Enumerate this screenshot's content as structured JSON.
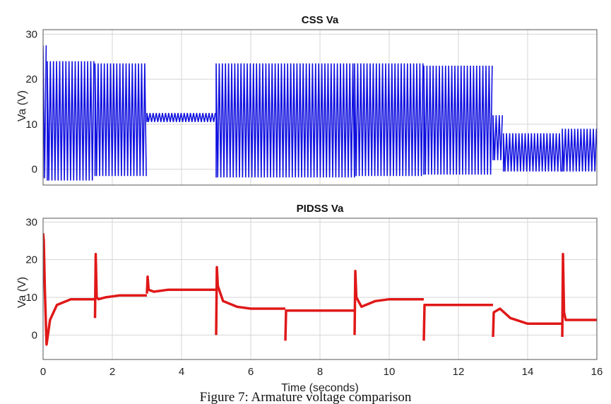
{
  "figure_caption": "Figure 7: Armature voltage comparison",
  "chart_data": [
    {
      "type": "line",
      "title": "CSS Va",
      "xlabel": "",
      "ylabel": "Va (V)",
      "xlim": [
        0,
        16
      ],
      "ylim": [
        -3.5,
        31
      ],
      "xticks": [
        "0",
        "2",
        "4",
        "6",
        "8",
        "10",
        "12",
        "14",
        "16"
      ],
      "yticks": [
        "0",
        "10",
        "20",
        "30"
      ],
      "grid": true,
      "color": "#1010e0",
      "oscillating": true,
      "segments": [
        {
          "x": [
            0.0,
            0.12
          ],
          "band": [
            -2.0,
            27.5
          ]
        },
        {
          "x": [
            0.12,
            1.5
          ],
          "band": [
            -2.5,
            24.0
          ]
        },
        {
          "x": [
            1.5,
            3.0
          ],
          "band": [
            -1.5,
            23.5
          ]
        },
        {
          "x": [
            3.0,
            5.0
          ],
          "band": [
            10.5,
            12.5
          ]
        },
        {
          "x": [
            5.0,
            9.0
          ],
          "band": [
            -1.8,
            23.5
          ]
        },
        {
          "x": [
            9.0,
            11.0
          ],
          "band": [
            -1.5,
            23.5
          ]
        },
        {
          "x": [
            11.0,
            13.0
          ],
          "band": [
            -1.2,
            23.0
          ]
        },
        {
          "x": [
            13.0,
            13.3
          ],
          "band": [
            2.0,
            12.0
          ]
        },
        {
          "x": [
            13.3,
            15.0
          ],
          "band": [
            -0.5,
            8.0
          ]
        },
        {
          "x": [
            15.0,
            16.0
          ],
          "band": [
            -0.5,
            9.0
          ]
        }
      ]
    },
    {
      "type": "line",
      "title": "PIDSS Va",
      "xlabel": "Time (seconds)",
      "ylabel": "Va (V)",
      "xlim": [
        0,
        16
      ],
      "ylim": [
        -6.5,
        31
      ],
      "xticks": [
        "0",
        "2",
        "4",
        "6",
        "8",
        "10",
        "12",
        "14",
        "16"
      ],
      "yticks": [
        "0",
        "10",
        "20",
        "30"
      ],
      "grid": true,
      "color": "#e01818",
      "series": [
        {
          "x": [
            0,
            0.02,
            0.05,
            0.1,
            0.2,
            0.4,
            0.8,
            1.5
          ],
          "y": [
            27,
            25,
            12,
            -2.5,
            4,
            8,
            9.5,
            9.5
          ]
        },
        {
          "x": [
            1.5,
            1.52,
            1.55,
            1.6,
            1.8,
            2.2,
            3.0
          ],
          "y": [
            4.5,
            21.5,
            10,
            9.5,
            10,
            10.5,
            10.5
          ]
        },
        {
          "x": [
            3.0,
            3.02,
            3.05,
            3.2,
            3.6,
            4.0,
            5.0
          ],
          "y": [
            11,
            15.5,
            12,
            11.5,
            12,
            12,
            12
          ]
        },
        {
          "x": [
            5.0,
            5.02,
            5.05,
            5.2,
            5.6,
            6.0,
            7.0
          ],
          "y": [
            0,
            18,
            13,
            9,
            7.5,
            7,
            7
          ]
        },
        {
          "x": [
            7.0,
            7.02,
            7.1,
            8.0,
            9.0
          ],
          "y": [
            -1.5,
            6.5,
            6.5,
            6.5,
            6.5
          ]
        },
        {
          "x": [
            9.0,
            9.02,
            9.05,
            9.2,
            9.6,
            10.0,
            11.0
          ],
          "y": [
            0,
            17,
            10,
            7.5,
            9,
            9.5,
            9.5
          ]
        },
        {
          "x": [
            11.0,
            11.02,
            11.1,
            12.0,
            13.0
          ],
          "y": [
            -1.5,
            8,
            8,
            8,
            8
          ]
        },
        {
          "x": [
            13.0,
            13.02,
            13.2,
            13.5,
            14.0,
            15.0
          ],
          "y": [
            -0.5,
            6,
            7,
            4.5,
            3,
            3
          ]
        },
        {
          "x": [
            15.0,
            15.02,
            15.05,
            15.1,
            15.3,
            16.0
          ],
          "y": [
            -0.5,
            21.5,
            6,
            4,
            4,
            4
          ]
        }
      ]
    }
  ]
}
